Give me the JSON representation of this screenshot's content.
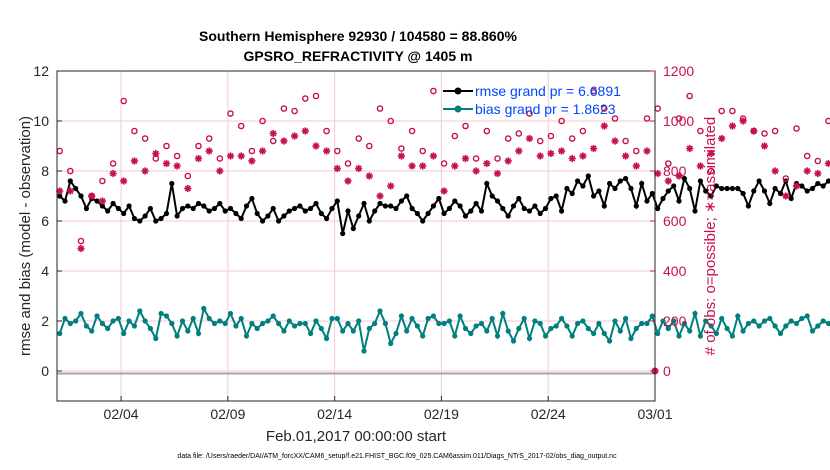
{
  "chart_data": {
    "type": "line",
    "title_line1": "Southern Hemisphere 92930 / 104580 = 88.860%",
    "title_line2": "GPSRO_REFRACTIVITY @ 1405 m",
    "xlabel": "Feb.01,2017 00:00:00 start",
    "ylabel_left": "rmse and bias (model - observation)",
    "ylabel_right": "# of obs: o=possible; ∗=assimilated",
    "x_tick_labels": [
      "02/04",
      "02/09",
      "02/14",
      "02/19",
      "02/24",
      "03/01"
    ],
    "x_tick_days": [
      3,
      8,
      13,
      18,
      23,
      28
    ],
    "xlim": [
      0,
      28
    ],
    "ylim_left": [
      -1.2,
      12
    ],
    "y_ticks_left": [
      "0",
      "2",
      "4",
      "6",
      "8",
      "10",
      "12"
    ],
    "ylim_right": [
      -120,
      1200
    ],
    "y_ticks_right": [
      "0",
      "200",
      "400",
      "600",
      "800",
      "1000",
      "1200"
    ],
    "legend": {
      "placement": "top-right",
      "rmse_label": "rmse grand pr = 6.6891",
      "bias_label": "bias grand pr = 1.8623"
    },
    "series": [
      {
        "name": "rmse",
        "color": "#000000",
        "marker": "filled-circle",
        "axis": "left",
        "t0": 0.125,
        "dt": 0.25,
        "values": [
          7.0,
          6.8,
          7.6,
          7.3,
          7.0,
          6.5,
          6.9,
          6.8,
          6.6,
          6.4,
          6.7,
          6.5,
          6.3,
          6.6,
          6.1,
          6.0,
          6.2,
          6.5,
          6.0,
          6.1,
          6.3,
          7.5,
          6.2,
          6.5,
          6.6,
          6.5,
          6.7,
          6.6,
          6.4,
          6.5,
          6.7,
          6.4,
          6.5,
          6.3,
          6.1,
          6.6,
          6.9,
          6.3,
          6.0,
          6.2,
          6.5,
          6.0,
          6.2,
          6.4,
          6.5,
          6.6,
          6.4,
          6.5,
          6.7,
          6.3,
          6.1,
          6.5,
          6.8,
          5.5,
          6.4,
          5.7,
          6.2,
          6.7,
          6.0,
          6.4,
          6.7,
          6.6,
          6.6,
          6.5,
          6.8,
          7.0,
          6.5,
          6.3,
          6.0,
          6.3,
          6.6,
          6.9,
          6.3,
          6.5,
          6.8,
          6.6,
          6.2,
          6.4,
          6.7,
          6.4,
          7.5,
          7.0,
          6.8,
          6.5,
          6.2,
          6.6,
          6.9,
          6.5,
          6.4,
          6.6,
          6.3,
          6.5,
          6.9,
          7.0,
          6.4,
          7.3,
          7.1,
          7.6,
          7.4,
          7.8,
          7.0,
          7.2,
          6.6,
          7.5,
          7.3,
          7.6,
          7.7,
          7.3,
          6.6,
          7.5,
          6.8,
          7.1,
          6.5,
          6.9,
          7.2,
          7.4,
          6.8,
          7.7,
          7.3,
          6.4,
          7.6,
          7.2,
          7.0,
          7.4,
          7.3,
          7.3,
          7.3,
          7.3,
          7.1,
          6.6,
          7.2,
          7.6,
          7.2,
          6.7,
          7.3,
          7.1,
          7.6,
          6.9,
          7.5,
          7.4,
          7.2,
          7.3,
          7.5,
          7.4,
          7.6,
          7.4,
          7.6,
          6.7,
          6.3,
          7.6,
          6.6,
          6.1,
          6.8,
          7.4,
          7.0,
          6.5,
          6.3,
          6.1,
          5.8,
          6.7,
          6.6,
          6.2,
          6.4,
          6.0,
          6.1,
          6.8,
          7.7,
          7.0,
          6.3,
          6.5,
          6.8,
          6.3,
          6.0,
          6.4,
          6.1,
          6.3,
          6.9,
          6.1,
          6.0,
          5.9,
          6.3,
          6.5,
          7.0,
          6.9,
          6.3,
          6.0,
          6.2,
          6.6,
          7.2,
          6.7,
          6.9,
          6.7
        ]
      },
      {
        "name": "bias",
        "color": "#007f7f",
        "marker": "filled-circle",
        "axis": "left",
        "t0": 0.125,
        "dt": 0.25,
        "values": [
          1.5,
          2.1,
          1.9,
          2.0,
          2.3,
          1.8,
          1.6,
          2.2,
          1.9,
          1.7,
          2.0,
          2.1,
          1.5,
          2.0,
          1.8,
          2.4,
          2.0,
          1.7,
          1.3,
          2.3,
          2.2,
          1.9,
          1.4,
          2.0,
          1.6,
          2.1,
          1.5,
          2.5,
          2.1,
          1.9,
          2.0,
          1.9,
          2.3,
          1.8,
          2.1,
          1.4,
          1.9,
          1.7,
          1.9,
          2.0,
          2.2,
          1.9,
          1.6,
          2.0,
          1.8,
          1.9,
          1.9,
          1.5,
          2.0,
          1.7,
          1.3,
          2.1,
          2.1,
          1.6,
          1.9,
          1.6,
          2.0,
          0.8,
          1.7,
          1.9,
          2.4,
          1.9,
          1.1,
          1.5,
          2.2,
          1.6,
          2.1,
          1.8,
          1.4,
          2.1,
          2.2,
          1.9,
          1.9,
          2.0,
          1.4,
          2.2,
          1.7,
          1.5,
          1.8,
          1.9,
          1.6,
          2.1,
          1.4,
          2.3,
          1.6,
          1.2,
          1.7,
          2.1,
          1.3,
          2.0,
          1.9,
          1.4,
          1.7,
          1.8,
          2.1,
          1.8,
          1.4,
          1.9,
          2.0,
          1.7,
          1.5,
          1.9,
          1.5,
          1.2,
          2.0,
          1.6,
          2.1,
          1.3,
          1.7,
          1.9,
          1.9,
          2.2,
          1.5,
          2.0,
          1.7,
          2.0,
          1.4,
          1.9,
          1.6,
          2.3,
          1.4,
          2.0,
          1.8,
          1.5,
          2.1,
          1.7,
          1.4,
          2.2,
          1.6,
          1.9,
          2.0,
          1.8,
          2.0,
          2.1,
          1.8,
          1.5,
          1.8,
          2.0,
          1.9,
          2.1,
          2.2,
          1.6,
          1.8,
          2.0,
          1.9,
          1.7,
          2.1,
          2.0,
          1.5,
          1.8,
          2.1,
          1.4,
          2.2,
          1.8,
          1.7,
          2.0,
          1.9,
          1.5,
          2.1,
          1.7,
          1.9,
          2.2,
          2.1,
          1.8,
          2.9,
          1.9,
          1.6,
          2.8,
          1.8,
          1.6,
          2.0,
          1.7,
          1.6,
          2.1,
          2.0,
          1.8,
          2.0,
          2.0,
          1.6,
          1.9,
          2.8,
          2.1,
          1.5,
          1.9,
          2.0,
          1.6,
          1.9,
          2.1,
          2.0,
          1.8,
          2.0,
          1.3,
          1.7,
          2.1
        ]
      },
      {
        "name": "possible",
        "color": "#c8104e",
        "marker": "circle",
        "axis": "right",
        "t0": 0.125,
        "dt": 0.5,
        "values": [
          880,
          800,
          520,
          700,
          760,
          830,
          1080,
          960,
          930,
          850,
          900,
          860,
          780,
          900,
          930,
          850,
          1030,
          980,
          880,
          1000,
          920,
          1050,
          1040,
          1090,
          1100,
          960,
          880,
          830,
          930,
          900,
          1050,
          1000,
          890,
          960,
          880,
          1120,
          830,
          940,
          980,
          850,
          960,
          850,
          930,
          950,
          1030,
          920,
          940,
          1000,
          930,
          960,
          1120,
          1050,
          1010,
          920,
          880,
          1010,
          1050,
          830,
          1010,
          1100,
          960,
          800,
          1040,
          1040,
          1010,
          960,
          950,
          960,
          770,
          970,
          860,
          840,
          1000,
          780,
          940,
          920,
          880,
          1050,
          990,
          910,
          1020,
          990,
          890,
          1050,
          1070,
          980,
          930,
          920,
          930,
          1090,
          1010,
          1020,
          950,
          930,
          990,
          850,
          1090,
          1030,
          970,
          950,
          900,
          1000,
          1040,
          950,
          940,
          960,
          930,
          860,
          880,
          890,
          870,
          920,
          1000,
          940,
          1030,
          1040,
          990,
          930,
          1000,
          970
        ]
      },
      {
        "name": "assimilated",
        "color": "#c8104e",
        "marker": "asterisk",
        "axis": "right",
        "t0": 0.125,
        "dt": 0.5,
        "values": [
          720,
          720,
          490,
          700,
          680,
          790,
          760,
          840,
          800,
          870,
          830,
          820,
          730,
          850,
          880,
          800,
          860,
          860,
          840,
          880,
          950,
          920,
          940,
          960,
          900,
          880,
          810,
          760,
          810,
          780,
          700,
          740,
          860,
          820,
          820,
          860,
          720,
          820,
          850,
          800,
          830,
          790,
          840,
          880,
          930,
          860,
          870,
          880,
          850,
          860,
          890,
          980,
          920,
          860,
          820,
          880,
          790,
          760,
          780,
          890,
          820,
          870,
          930,
          980,
          1000,
          960,
          900,
          800,
          700,
          740,
          800,
          790,
          830,
          800,
          840,
          790,
          690,
          720,
          830,
          780,
          840,
          900,
          860,
          880,
          940,
          870,
          830,
          780,
          800,
          840,
          900,
          920,
          900,
          780,
          800,
          730,
          850,
          940,
          900,
          880,
          830,
          770,
          770,
          850,
          920,
          880,
          840,
          820,
          870,
          860,
          840,
          790,
          830,
          870,
          830,
          860,
          850,
          940,
          890,
          830,
          840,
          810
        ]
      }
    ]
  },
  "footer": "data file: /Users/raeder/DAI/ATM_forcXX/CAM6_setup/f.e21.FHIST_BGC.f09_025.CAM6assim.011/Diags_NTrS_2017-02/obs_diag_output.nc"
}
